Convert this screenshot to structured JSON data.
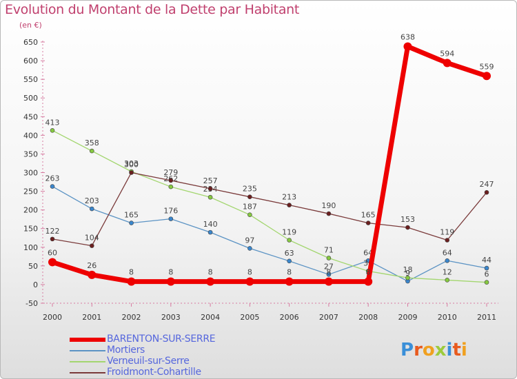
{
  "header": {
    "title": "Evolution du Montant de la Dette par Habitant",
    "unit": "(en €)"
  },
  "logo": {
    "letters": [
      "P",
      "r",
      "o",
      "x",
      "i",
      "t",
      "i"
    ],
    "colors": [
      "#3a8fd8",
      "#e85a1e",
      "#f0a020",
      "#9ccb3c",
      "#3a8fd8",
      "#e85a1e",
      "#f0a020"
    ]
  },
  "chart_data": {
    "type": "line",
    "x": [
      "2000",
      "2001",
      "2002",
      "2003",
      "2004",
      "2005",
      "2006",
      "2007",
      "2008",
      "2009",
      "2010",
      "2011"
    ],
    "yticks": [
      -50,
      0,
      50,
      100,
      150,
      200,
      250,
      300,
      350,
      400,
      450,
      500,
      550,
      600,
      650
    ],
    "ylim": [
      -50,
      650
    ],
    "grid": false,
    "legend_position": "bottom",
    "series": [
      {
        "name": "Mortiers",
        "color": "#5b93c4",
        "point": "#3a86cc",
        "width": 1.3,
        "radius": 3,
        "values": [
          263,
          203,
          165,
          176,
          140,
          97,
          63,
          27,
          64,
          9,
          64,
          44
        ],
        "labels": [
          "263",
          "203",
          "165",
          "176",
          "140",
          "97",
          "63",
          "27",
          "64",
          "9",
          "64",
          "44"
        ]
      },
      {
        "name": "Verneuil-sur-Serre",
        "color": "#a3d66f",
        "point": "#86c940",
        "width": 1.3,
        "radius": 3,
        "values": [
          413,
          358,
          303,
          262,
          234,
          187,
          119,
          71,
          36,
          18,
          12,
          6
        ],
        "labels": [
          "413",
          "358",
          "303",
          "262",
          "234",
          "187",
          "119",
          "71",
          "36",
          "18",
          "12",
          "6"
        ]
      },
      {
        "name": "Froidmont-Cohartille",
        "color": "#7a3a3a",
        "point": "#6b1f1f",
        "width": 1.3,
        "radius": 3,
        "values": [
          122,
          104,
          300,
          279,
          257,
          235,
          213,
          190,
          165,
          153,
          119,
          247
        ],
        "labels": [
          "122",
          "104",
          "300",
          "279",
          "257",
          "235",
          "213",
          "190",
          "165",
          "153",
          "119",
          "247"
        ]
      },
      {
        "name": "BARENTON-SUR-SERRE",
        "color": "#ee0000",
        "point": "#ee0000",
        "width": 7,
        "radius": 6,
        "values": [
          60,
          26,
          8,
          8,
          8,
          8,
          8,
          8,
          8,
          638,
          594,
          559
        ],
        "labels": [
          "60",
          "26",
          "8",
          "8",
          "8",
          "8",
          "8",
          "8",
          "8",
          "638",
          "594",
          "559"
        ]
      }
    ]
  }
}
